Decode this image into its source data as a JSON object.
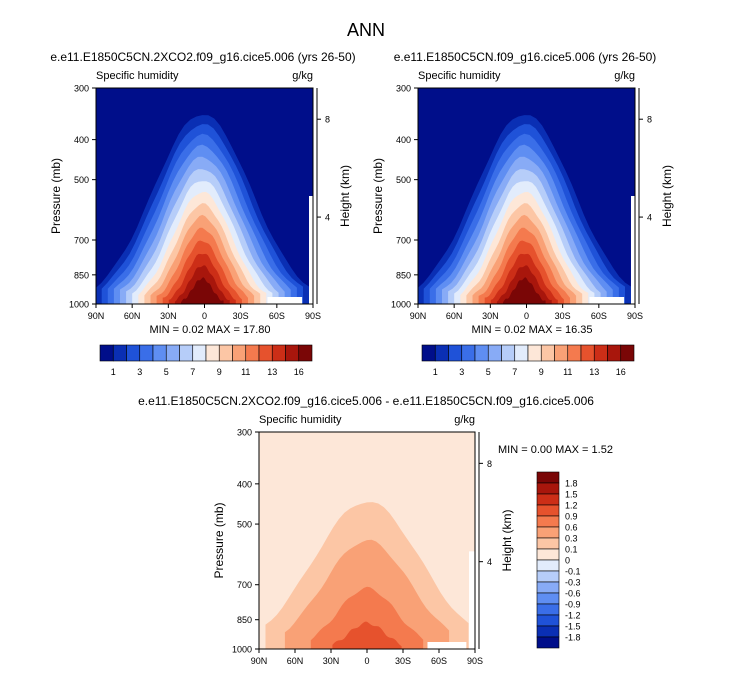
{
  "title": "ANN",
  "panels": [
    {
      "title": "e.e11.E1850C5CN.2XCO2.f09_g16.cice5.006 (yrs 26-50)",
      "left_label": "Specific humidity",
      "right_label": "g/kg",
      "stats": "MIN =  0.02  MAX = 17.80"
    },
    {
      "title": "e.e11.E1850C5CN.f09_g16.cice5.006 (yrs 26-50)",
      "left_label": "Specific humidity",
      "right_label": "g/kg",
      "stats": "MIN =  0.02  MAX = 16.35"
    },
    {
      "title": "e.e11.E1850C5CN.2XCO2.f09_g16.cice5.006 - e.e11.E1850C5CN.f09_g16.cice5.006",
      "left_label": "Specific humidity",
      "right_label": "g/kg",
      "stats": "MIN =  0.00  MAX =  1.52"
    }
  ],
  "colors": {
    "abs_levels": [
      "#000e8a",
      "#0a2fb4",
      "#1f52d8",
      "#3a6ee8",
      "#5f8ef2",
      "#88abf6",
      "#b6cdf9",
      "#e2ecfc",
      "#fde7d8",
      "#fcc6a5",
      "#f9a176",
      "#f47a4e",
      "#e6522d",
      "#cc2e17",
      "#a8160c",
      "#7a0606"
    ],
    "diff_levels": [
      "#000e8a",
      "#0a2fb4",
      "#1f52d8",
      "#3a6ee8",
      "#5f8ef2",
      "#88abf6",
      "#b6cdf9",
      "#e2ecfc",
      "#fde7d8",
      "#fcc6a5",
      "#f9a176",
      "#f47a4e",
      "#e6522d",
      "#cc2e17",
      "#a8160c",
      "#7a0606"
    ]
  },
  "chart_data": [
    {
      "type": "heatmap",
      "title": "e.e11.E1850C5CN.2XCO2.f09_g16.cice5.006 (yrs 26-50)",
      "field": "Specific humidity",
      "units": "g/kg",
      "xlabel": "",
      "ylabel": "Pressure (mb)",
      "y2label": "Height (km)",
      "x_ticks": [
        "90N",
        "60N",
        "30N",
        "0",
        "30S",
        "60S",
        "90S"
      ],
      "x_values": [
        90,
        60,
        30,
        0,
        -30,
        -60,
        -90
      ],
      "y_ticks": [
        300,
        400,
        500,
        700,
        850,
        1000
      ],
      "y2_ticks": [
        8,
        4
      ],
      "min": 0.02,
      "max": 17.8,
      "colorbar_labels": [
        "1",
        "3",
        "5",
        "7",
        "9",
        "11",
        "13",
        "16"
      ]
    },
    {
      "type": "heatmap",
      "title": "e.e11.E1850C5CN.f09_g16.cice5.006 (yrs 26-50)",
      "field": "Specific humidity",
      "units": "g/kg",
      "xlabel": "",
      "ylabel": "Pressure (mb)",
      "y2label": "Height (km)",
      "x_ticks": [
        "90N",
        "60N",
        "30N",
        "0",
        "30S",
        "60S",
        "90S"
      ],
      "x_values": [
        90,
        60,
        30,
        0,
        -30,
        -60,
        -90
      ],
      "y_ticks": [
        300,
        400,
        500,
        700,
        850,
        1000
      ],
      "y2_ticks": [
        8,
        4
      ],
      "min": 0.02,
      "max": 16.35,
      "colorbar_labels": [
        "1",
        "3",
        "5",
        "7",
        "9",
        "11",
        "13",
        "16"
      ]
    },
    {
      "type": "heatmap",
      "title": "e.e11.E1850C5CN.2XCO2.f09_g16.cice5.006 - e.e11.E1850C5CN.f09_g16.cice5.006",
      "field": "Specific humidity",
      "units": "g/kg",
      "xlabel": "",
      "ylabel": "Pressure (mb)",
      "y2label": "Height (km)",
      "x_ticks": [
        "90N",
        "60N",
        "30N",
        "0",
        "30S",
        "60S",
        "90S"
      ],
      "x_values": [
        90,
        60,
        30,
        0,
        -30,
        -60,
        -90
      ],
      "y_ticks": [
        300,
        400,
        500,
        700,
        850,
        1000
      ],
      "y2_ticks": [
        8,
        4
      ],
      "min": 0.0,
      "max": 1.52,
      "colorbar_labels": [
        "1.8",
        "1.5",
        "1.2",
        "0.9",
        "0.6",
        "0.3",
        "0.1",
        "0",
        "-0.1",
        "-0.3",
        "-0.6",
        "-0.9",
        "-1.2",
        "-1.5",
        "-1.8"
      ]
    }
  ]
}
